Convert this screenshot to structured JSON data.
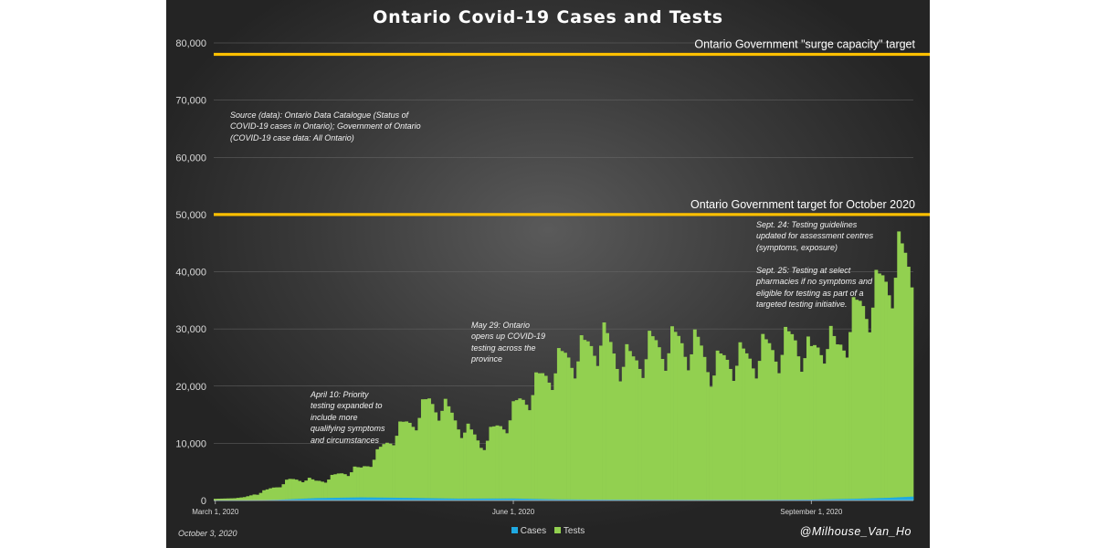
{
  "chart_data": {
    "type": "bar",
    "title": "Ontario Covid-19 Cases and Tests",
    "xlabel": "",
    "ylabel": "",
    "ylim": [
      0,
      80000
    ],
    "yticks": [
      0,
      10000,
      20000,
      30000,
      40000,
      50000,
      60000,
      70000,
      80000
    ],
    "ytick_labels": [
      "0",
      "10,000",
      "20,000",
      "30,000",
      "40,000",
      "50,000",
      "60,000",
      "70,000",
      "80,000"
    ],
    "x_start": "2020-03-01",
    "x_end": "2020-10-02",
    "xticks": [
      {
        "date": "2020-03-01",
        "label": "March 1, 2020"
      },
      {
        "date": "2020-06-01",
        "label": "June 1, 2020"
      },
      {
        "date": "2020-09-01",
        "label": "September 1, 2020"
      }
    ],
    "grid": true,
    "legend_position": "bottom",
    "series": [
      {
        "name": "Cases",
        "color": "#1fa9e1",
        "type": "bar",
        "control_points": [
          [
            "2020-03-01",
            0
          ],
          [
            "2020-03-10",
            20
          ],
          [
            "2020-03-20",
            120
          ],
          [
            "2020-04-01",
            420
          ],
          [
            "2020-04-15",
            550
          ],
          [
            "2020-05-01",
            450
          ],
          [
            "2020-05-15",
            330
          ],
          [
            "2020-06-01",
            350
          ],
          [
            "2020-06-15",
            190
          ],
          [
            "2020-07-01",
            140
          ],
          [
            "2020-07-15",
            120
          ],
          [
            "2020-08-01",
            100
          ],
          [
            "2020-08-15",
            95
          ],
          [
            "2020-09-01",
            160
          ],
          [
            "2020-09-15",
            310
          ],
          [
            "2020-09-25",
            480
          ],
          [
            "2020-10-02",
            680
          ]
        ]
      },
      {
        "name": "Tests",
        "color": "#92d050",
        "type": "bar",
        "control_points": [
          [
            "2020-03-01",
            300
          ],
          [
            "2020-03-07",
            400
          ],
          [
            "2020-03-10",
            600
          ],
          [
            "2020-03-14",
            1200
          ],
          [
            "2020-03-17",
            1800
          ],
          [
            "2020-03-20",
            2500
          ],
          [
            "2020-03-24",
            3500
          ],
          [
            "2020-03-28",
            3800
          ],
          [
            "2020-04-01",
            3300
          ],
          [
            "2020-04-06",
            4000
          ],
          [
            "2020-04-10",
            5000
          ],
          [
            "2020-04-15",
            5500
          ],
          [
            "2020-04-20",
            8000
          ],
          [
            "2020-04-25",
            11500
          ],
          [
            "2020-05-01",
            14000
          ],
          [
            "2020-05-06",
            17000
          ],
          [
            "2020-05-10",
            16500
          ],
          [
            "2020-05-14",
            14000
          ],
          [
            "2020-05-18",
            12000
          ],
          [
            "2020-05-22",
            10000
          ],
          [
            "2020-05-26",
            12000
          ],
          [
            "2020-05-30",
            14000
          ],
          [
            "2020-06-03",
            17000
          ],
          [
            "2020-06-08",
            20000
          ],
          [
            "2020-06-13",
            23000
          ],
          [
            "2020-06-18",
            25000
          ],
          [
            "2020-06-23",
            26000
          ],
          [
            "2020-06-28",
            28500
          ],
          [
            "2020-07-03",
            25000
          ],
          [
            "2020-07-08",
            24000
          ],
          [
            "2020-07-13",
            26500
          ],
          [
            "2020-07-18",
            27000
          ],
          [
            "2020-07-23",
            27500
          ],
          [
            "2020-07-28",
            26500
          ],
          [
            "2020-08-02",
            23000
          ],
          [
            "2020-08-07",
            25000
          ],
          [
            "2020-08-12",
            24500
          ],
          [
            "2020-08-17",
            26000
          ],
          [
            "2020-08-22",
            26500
          ],
          [
            "2020-08-27",
            28000
          ],
          [
            "2020-09-01",
            25000
          ],
          [
            "2020-09-05",
            28500
          ],
          [
            "2020-09-09",
            26000
          ],
          [
            "2020-09-13",
            31000
          ],
          [
            "2020-09-17",
            34000
          ],
          [
            "2020-09-21",
            36000
          ],
          [
            "2020-09-25",
            39000
          ],
          [
            "2020-09-28",
            42000
          ],
          [
            "2020-10-02",
            40500
          ]
        ]
      }
    ],
    "reference_lines": [
      {
        "value": 78000,
        "label": "Ontario Government \"surge capacity\" target",
        "color": "#ffc000"
      },
      {
        "value": 50000,
        "label": "Ontario Government target for October 2020",
        "color": "#ffc000"
      }
    ]
  },
  "annotations": {
    "source": "Source (data): Ontario Data Catalogue (Status of COVID-19 cases in Ontario); Government of Ontario (COVID-19 case data: All Ontario)",
    "april10": "April 10: Priority testing expanded to include more qualifying symptoms and circumstances",
    "may29": "May 29: Ontario opens up COVID-19 testing across the province",
    "sept24": "Sept. 24: Testing guidelines updated for assessment centres (symptoms, exposure)",
    "sept25": "Sept. 25: Testing at select pharmacies if no symptoms and eligible for testing as part of a targeted testing initiative."
  },
  "footer": {
    "date": "October 3, 2020",
    "handle": "@Milhouse_Van_Ho"
  }
}
